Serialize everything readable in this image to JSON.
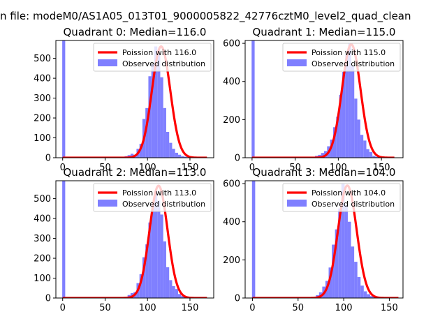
{
  "figure": {
    "suptitle": "n file: modeM0/AS1A05_013T01_9000005822_42776cztM0_level2_quad_clean"
  },
  "chart_data": [
    {
      "type": "bar",
      "title": "Quadrant 0: Median=116.0",
      "xlim": [
        -8,
        178
      ],
      "ylim": [
        0,
        590
      ],
      "xticks": [
        0,
        50,
        100,
        150
      ],
      "yticks": [
        0,
        100,
        200,
        300,
        400,
        500
      ],
      "legend_position": "top-right",
      "median": 116.0,
      "histogram": {
        "name": "Observed distribution",
        "color": "#7f7fff",
        "bin_start": -0.5,
        "bin_width": 3.5,
        "values": [
          590,
          0,
          0,
          0,
          0,
          0,
          0,
          0,
          0,
          0,
          0,
          0,
          0,
          0,
          0,
          0,
          0,
          0,
          0,
          0,
          0,
          8,
          13,
          20,
          15,
          45,
          70,
          195,
          250,
          410,
          470,
          560,
          520,
          405,
          250,
          130,
          75,
          45,
          25,
          15,
          8,
          5,
          2
        ]
      },
      "fit": {
        "name": "Poission with 116.0",
        "color": "#ff0000",
        "peak": 560,
        "mu": 116,
        "sigma": 10.8,
        "x_range": [
          0,
          170
        ]
      }
    },
    {
      "type": "bar",
      "title": "Quadrant 1: Median=115.0",
      "xlim": [
        -8,
        175
      ],
      "ylim": [
        0,
        615
      ],
      "xticks": [
        0,
        50,
        100,
        150
      ],
      "yticks": [
        0,
        200,
        400,
        600
      ],
      "legend_position": "top-right",
      "median": 115.0,
      "histogram": {
        "name": "Observed distribution",
        "color": "#7f7fff",
        "bin_start": -0.5,
        "bin_width": 3.5,
        "values": [
          615,
          0,
          0,
          0,
          0,
          0,
          0,
          0,
          0,
          0,
          0,
          0,
          0,
          0,
          0,
          0,
          0,
          0,
          0,
          0,
          0,
          10,
          15,
          25,
          35,
          60,
          95,
          160,
          215,
          330,
          450,
          540,
          600,
          480,
          310,
          200,
          120,
          90,
          45,
          30,
          10,
          5,
          2
        ]
      },
      "fit": {
        "name": "Poission with 115.0",
        "color": "#ff0000",
        "peak": 595,
        "mu": 115,
        "sigma": 10.7,
        "x_range": [
          0,
          165
        ]
      }
    },
    {
      "type": "bar",
      "title": "Quadrant 2: Median=113.0",
      "xlim": [
        -8,
        178
      ],
      "ylim": [
        0,
        590
      ],
      "xticks": [
        0,
        50,
        100,
        150
      ],
      "yticks": [
        0,
        100,
        200,
        300,
        400,
        500
      ],
      "legend_position": "top-right",
      "median": 113.0,
      "histogram": {
        "name": "Observed distribution",
        "color": "#7f7fff",
        "bin_start": -0.5,
        "bin_width": 3.5,
        "values": [
          590,
          0,
          0,
          0,
          0,
          0,
          0,
          0,
          0,
          0,
          0,
          0,
          0,
          0,
          0,
          0,
          0,
          0,
          0,
          0,
          2,
          5,
          15,
          25,
          30,
          75,
          120,
          205,
          270,
          380,
          480,
          540,
          490,
          420,
          285,
          155,
          90,
          60,
          45,
          20,
          10,
          5,
          2
        ]
      },
      "fit": {
        "name": "Poission with 113.0",
        "color": "#ff0000",
        "peak": 565,
        "mu": 113,
        "sigma": 10.6,
        "x_range": [
          0,
          170
        ]
      }
    },
    {
      "type": "bar",
      "title": "Quadrant 3: Median=104.0",
      "xlim": [
        -8,
        165
      ],
      "ylim": [
        0,
        615
      ],
      "xticks": [
        0,
        50,
        100,
        150
      ],
      "yticks": [
        0,
        200,
        400,
        600
      ],
      "legend_position": "top-right",
      "median": 104.0,
      "histogram": {
        "name": "Observed distribution",
        "color": "#7f7fff",
        "bin_start": -0.5,
        "bin_width": 3.5,
        "values": [
          615,
          0,
          0,
          0,
          0,
          0,
          0,
          0,
          0,
          0,
          0,
          0,
          0,
          0,
          0,
          0,
          0,
          0,
          0,
          5,
          15,
          30,
          60,
          90,
          160,
          280,
          360,
          470,
          600,
          490,
          400,
          270,
          190,
          110,
          65,
          35,
          20,
          10,
          5,
          2
        ]
      },
      "fit": {
        "name": "Poission with 104.0",
        "color": "#ff0000",
        "peak": 590,
        "mu": 104,
        "sigma": 10.2,
        "x_range": [
          0,
          160
        ]
      }
    }
  ]
}
